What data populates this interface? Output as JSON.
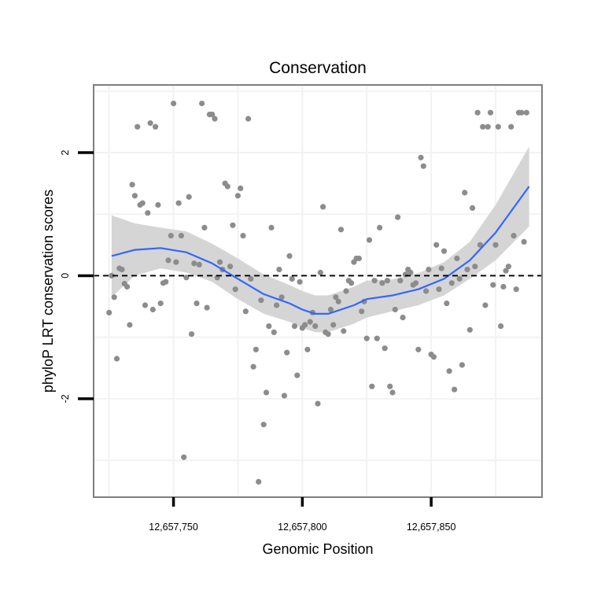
{
  "chart_data": {
    "type": "scatter",
    "title": "Conservation",
    "xlabel": "Genomic Position",
    "ylabel": "phyloP LRT conservation scores",
    "xlim": [
      12657719,
      12657893
    ],
    "ylim": [
      -3.6,
      3.1
    ],
    "x_ticks": [
      12657750,
      12657800,
      12657850
    ],
    "x_tick_labels": [
      "12,657,750",
      "12,657,800",
      "12,657,850"
    ],
    "y_ticks": [
      -2,
      0,
      2
    ],
    "y_tick_labels": [
      "-2",
      "0",
      "2"
    ],
    "grid": true,
    "reference_line": {
      "y": 0,
      "style": "dashed"
    },
    "colors": {
      "points": "#8c8c8c",
      "smooth": "#3366ff",
      "band": "#d3d3d3",
      "frame": "#7f7f7f",
      "grid": "#f2f2f2"
    },
    "points": [
      {
        "x": 12657725,
        "y": -0.6
      },
      {
        "x": 12657726,
        "y": 0.0
      },
      {
        "x": 12657727,
        "y": -0.35
      },
      {
        "x": 12657728,
        "y": -1.35
      },
      {
        "x": 12657729,
        "y": 0.12
      },
      {
        "x": 12657730,
        "y": 0.1
      },
      {
        "x": 12657731,
        "y": -0.13
      },
      {
        "x": 12657732,
        "y": -0.18
      },
      {
        "x": 12657733,
        "y": -0.8
      },
      {
        "x": 12657734,
        "y": 1.48
      },
      {
        "x": 12657735,
        "y": 1.3
      },
      {
        "x": 12657736,
        "y": 2.42
      },
      {
        "x": 12657737,
        "y": 1.15
      },
      {
        "x": 12657738,
        "y": 1.18
      },
      {
        "x": 12657739,
        "y": -0.48
      },
      {
        "x": 12657740,
        "y": 1.02
      },
      {
        "x": 12657741,
        "y": 2.48
      },
      {
        "x": 12657742,
        "y": -0.55
      },
      {
        "x": 12657743,
        "y": 2.42
      },
      {
        "x": 12657744,
        "y": 1.15
      },
      {
        "x": 12657745,
        "y": -0.45
      },
      {
        "x": 12657746,
        "y": -0.12
      },
      {
        "x": 12657747,
        "y": -0.1
      },
      {
        "x": 12657748,
        "y": 0.25
      },
      {
        "x": 12657749,
        "y": 0.65
      },
      {
        "x": 12657750,
        "y": 2.8
      },
      {
        "x": 12657751,
        "y": 0.22
      },
      {
        "x": 12657752,
        "y": 1.18
      },
      {
        "x": 12657753,
        "y": 0.65
      },
      {
        "x": 12657754,
        "y": -2.95
      },
      {
        "x": 12657755,
        "y": -0.03
      },
      {
        "x": 12657756,
        "y": 1.28
      },
      {
        "x": 12657757,
        "y": -0.95
      },
      {
        "x": 12657758,
        "y": 0.2
      },
      {
        "x": 12657759,
        "y": -0.45
      },
      {
        "x": 12657760,
        "y": 0.18
      },
      {
        "x": 12657761,
        "y": 2.8
      },
      {
        "x": 12657762,
        "y": 0.78
      },
      {
        "x": 12657763,
        "y": -0.52
      },
      {
        "x": 12657764,
        "y": 2.62
      },
      {
        "x": 12657765,
        "y": 2.62
      },
      {
        "x": 12657766,
        "y": 2.55
      },
      {
        "x": 12657767,
        "y": -0.03
      },
      {
        "x": 12657768,
        "y": 0.22
      },
      {
        "x": 12657769,
        "y": 0.1
      },
      {
        "x": 12657770,
        "y": 1.5
      },
      {
        "x": 12657771,
        "y": 1.45
      },
      {
        "x": 12657772,
        "y": 0.15
      },
      {
        "x": 12657773,
        "y": 0.82
      },
      {
        "x": 12657774,
        "y": -0.22
      },
      {
        "x": 12657775,
        "y": 1.3
      },
      {
        "x": 12657776,
        "y": 1.42
      },
      {
        "x": 12657777,
        "y": 0.65
      },
      {
        "x": 12657778,
        "y": -0.58
      },
      {
        "x": 12657779,
        "y": 2.55
      },
      {
        "x": 12657780,
        "y": -0.05
      },
      {
        "x": 12657781,
        "y": -1.48
      },
      {
        "x": 12657782,
        "y": -1.2
      },
      {
        "x": 12657783,
        "y": -3.35
      },
      {
        "x": 12657784,
        "y": -0.4
      },
      {
        "x": 12657785,
        "y": -2.42
      },
      {
        "x": 12657786,
        "y": -1.9
      },
      {
        "x": 12657787,
        "y": -0.82
      },
      {
        "x": 12657788,
        "y": 0.78
      },
      {
        "x": 12657789,
        "y": -0.92
      },
      {
        "x": 12657790,
        "y": -0.48
      },
      {
        "x": 12657791,
        "y": 0.1
      },
      {
        "x": 12657792,
        "y": -0.35
      },
      {
        "x": 12657793,
        "y": -1.95
      },
      {
        "x": 12657794,
        "y": -1.25
      },
      {
        "x": 12657795,
        "y": 0.32
      },
      {
        "x": 12657796,
        "y": -0.05
      },
      {
        "x": 12657797,
        "y": -0.82
      },
      {
        "x": 12657798,
        "y": -1.62
      },
      {
        "x": 12657799,
        "y": -0.1
      },
      {
        "x": 12657800,
        "y": -0.85
      },
      {
        "x": 12657801,
        "y": -0.8
      },
      {
        "x": 12657802,
        "y": -1.2
      },
      {
        "x": 12657803,
        "y": -0.75
      },
      {
        "x": 12657804,
        "y": -0.6
      },
      {
        "x": 12657805,
        "y": -0.82
      },
      {
        "x": 12657806,
        "y": -2.08
      },
      {
        "x": 12657807,
        "y": 0.05
      },
      {
        "x": 12657808,
        "y": 1.12
      },
      {
        "x": 12657809,
        "y": -0.92
      },
      {
        "x": 12657810,
        "y": -0.95
      },
      {
        "x": 12657811,
        "y": -0.55
      },
      {
        "x": 12657812,
        "y": -0.8
      },
      {
        "x": 12657813,
        "y": -0.35
      },
      {
        "x": 12657814,
        "y": -0.42
      },
      {
        "x": 12657815,
        "y": 0.75
      },
      {
        "x": 12657816,
        "y": -0.9
      },
      {
        "x": 12657817,
        "y": -0.25
      },
      {
        "x": 12657818,
        "y": -0.08
      },
      {
        "x": 12657819,
        "y": -0.12
      },
      {
        "x": 12657820,
        "y": 0.22
      },
      {
        "x": 12657821,
        "y": 0.28
      },
      {
        "x": 12657822,
        "y": 0.28
      },
      {
        "x": 12657823,
        "y": -0.58
      },
      {
        "x": 12657824,
        "y": -0.42
      },
      {
        "x": 12657825,
        "y": -1.02
      },
      {
        "x": 12657826,
        "y": 0.58
      },
      {
        "x": 12657827,
        "y": -1.8
      },
      {
        "x": 12657828,
        "y": -0.08
      },
      {
        "x": 12657829,
        "y": -1.02
      },
      {
        "x": 12657830,
        "y": 0.78
      },
      {
        "x": 12657831,
        "y": -0.12
      },
      {
        "x": 12657832,
        "y": -1.18
      },
      {
        "x": 12657833,
        "y": -0.08
      },
      {
        "x": 12657834,
        "y": -1.8
      },
      {
        "x": 12657835,
        "y": -1.9
      },
      {
        "x": 12657836,
        "y": -0.55
      },
      {
        "x": 12657837,
        "y": 0.95
      },
      {
        "x": 12657838,
        "y": -0.08
      },
      {
        "x": 12657839,
        "y": -0.68
      },
      {
        "x": 12657840,
        "y": 0.02
      },
      {
        "x": 12657841,
        "y": 0.1
      },
      {
        "x": 12657842,
        "y": 0.05
      },
      {
        "x": 12657843,
        "y": -0.15
      },
      {
        "x": 12657844,
        "y": -0.12
      },
      {
        "x": 12657845,
        "y": -1.2
      },
      {
        "x": 12657846,
        "y": 1.92
      },
      {
        "x": 12657847,
        "y": 1.78
      },
      {
        "x": 12657848,
        "y": -0.25
      },
      {
        "x": 12657849,
        "y": 0.1
      },
      {
        "x": 12657850,
        "y": -1.28
      },
      {
        "x": 12657851,
        "y": -1.32
      },
      {
        "x": 12657852,
        "y": 0.5
      },
      {
        "x": 12657853,
        "y": -0.22
      },
      {
        "x": 12657854,
        "y": 0.12
      },
      {
        "x": 12657855,
        "y": 0.4
      },
      {
        "x": 12657856,
        "y": -0.45
      },
      {
        "x": 12657857,
        "y": -1.55
      },
      {
        "x": 12657858,
        "y": -0.12
      },
      {
        "x": 12657859,
        "y": -1.85
      },
      {
        "x": 12657860,
        "y": 0.28
      },
      {
        "x": 12657861,
        "y": -0.05
      },
      {
        "x": 12657862,
        "y": -1.45
      },
      {
        "x": 12657863,
        "y": 1.35
      },
      {
        "x": 12657864,
        "y": 0.1
      },
      {
        "x": 12657865,
        "y": -0.88
      },
      {
        "x": 12657866,
        "y": 1.1
      },
      {
        "x": 12657867,
        "y": 0.15
      },
      {
        "x": 12657868,
        "y": 2.65
      },
      {
        "x": 12657869,
        "y": 0.5
      },
      {
        "x": 12657870,
        "y": 2.42
      },
      {
        "x": 12657871,
        "y": -0.48
      },
      {
        "x": 12657872,
        "y": 2.42
      },
      {
        "x": 12657873,
        "y": 2.65
      },
      {
        "x": 12657874,
        "y": -0.15
      },
      {
        "x": 12657875,
        "y": 0.5
      },
      {
        "x": 12657876,
        "y": 2.42
      },
      {
        "x": 12657877,
        "y": -0.82
      },
      {
        "x": 12657878,
        "y": -0.18
      },
      {
        "x": 12657879,
        "y": 0.08
      },
      {
        "x": 12657880,
        "y": 0.15
      },
      {
        "x": 12657881,
        "y": 2.42
      },
      {
        "x": 12657882,
        "y": 0.65
      },
      {
        "x": 12657883,
        "y": -0.22
      },
      {
        "x": 12657884,
        "y": 2.65
      },
      {
        "x": 12657885,
        "y": 2.65
      },
      {
        "x": 12657886,
        "y": 0.55
      },
      {
        "x": 12657887,
        "y": 2.65
      }
    ],
    "smooth": {
      "method": "loess",
      "x": [
        12657726,
        12657735,
        12657745,
        12657755,
        12657765,
        12657775,
        12657785,
        12657795,
        12657800,
        12657805,
        12657810,
        12657815,
        12657820,
        12657825,
        12657835,
        12657845,
        12657855,
        12657865,
        12657875,
        12657888
      ],
      "y": [
        0.32,
        0.42,
        0.45,
        0.38,
        0.2,
        -0.05,
        -0.3,
        -0.45,
        -0.55,
        -0.62,
        -0.62,
        -0.55,
        -0.48,
        -0.38,
        -0.32,
        -0.22,
        -0.05,
        0.25,
        0.7,
        1.45
      ],
      "lower": [
        -0.35,
        0.0,
        0.12,
        0.05,
        -0.1,
        -0.38,
        -0.62,
        -0.75,
        -0.85,
        -0.92,
        -0.92,
        -0.85,
        -0.78,
        -0.68,
        -0.58,
        -0.48,
        -0.32,
        -0.05,
        0.25,
        0.8
      ],
      "upper": [
        0.98,
        0.85,
        0.78,
        0.72,
        0.52,
        0.28,
        0.02,
        -0.15,
        -0.25,
        -0.32,
        -0.32,
        -0.25,
        -0.18,
        -0.08,
        -0.06,
        0.04,
        0.22,
        0.55,
        1.15,
        2.1
      ]
    }
  }
}
